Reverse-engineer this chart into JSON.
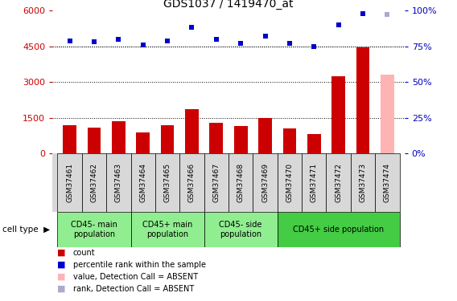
{
  "title": "GDS1037 / 1419470_at",
  "samples": [
    "GSM37461",
    "GSM37462",
    "GSM37463",
    "GSM37464",
    "GSM37465",
    "GSM37466",
    "GSM37467",
    "GSM37468",
    "GSM37469",
    "GSM37470",
    "GSM37471",
    "GSM37472",
    "GSM37473",
    "GSM37474"
  ],
  "bar_values": [
    1200,
    1100,
    1350,
    900,
    1200,
    1850,
    1300,
    1150,
    1480,
    1050,
    800,
    3250,
    4450,
    3300
  ],
  "bar_colors": [
    "#cc0000",
    "#cc0000",
    "#cc0000",
    "#cc0000",
    "#cc0000",
    "#cc0000",
    "#cc0000",
    "#cc0000",
    "#cc0000",
    "#cc0000",
    "#cc0000",
    "#cc0000",
    "#cc0000",
    "#ffb3b3"
  ],
  "scatter_values": [
    79,
    78,
    80,
    76,
    79,
    88,
    80,
    77,
    82,
    77,
    75,
    90,
    98,
    97
  ],
  "scatter_colors": [
    "#0000cc",
    "#0000cc",
    "#0000cc",
    "#0000cc",
    "#0000cc",
    "#0000cc",
    "#0000cc",
    "#0000cc",
    "#0000cc",
    "#0000cc",
    "#0000cc",
    "#0000cc",
    "#0000cc",
    "#aaaacc"
  ],
  "ylim_left": [
    0,
    6000
  ],
  "ylim_right": [
    0,
    100
  ],
  "yticks_left": [
    0,
    1500,
    3000,
    4500,
    6000
  ],
  "yticks_right": [
    0,
    25,
    50,
    75,
    100
  ],
  "ylabel_left_color": "#cc0000",
  "ylabel_right_color": "#0000bb",
  "background_color": "#ffffff",
  "plot_bg_color": "#ffffff",
  "dotted_grid_values": [
    1500,
    3000,
    4500
  ],
  "cell_type_label": "cell type",
  "group_boundaries": [
    [
      0,
      2,
      "CD45- main\npopulation",
      "#90ee90"
    ],
    [
      3,
      5,
      "CD45+ main\npopulation",
      "#90ee90"
    ],
    [
      6,
      8,
      "CD45- side\npopulation",
      "#90ee90"
    ],
    [
      9,
      13,
      "CD45+ side population",
      "#44cc44"
    ]
  ],
  "legend_labels": [
    "count",
    "percentile rank within the sample",
    "value, Detection Call = ABSENT",
    "rank, Detection Call = ABSENT"
  ],
  "legend_colors": [
    "#cc0000",
    "#0000cc",
    "#ffb3b3",
    "#aaaacc"
  ]
}
